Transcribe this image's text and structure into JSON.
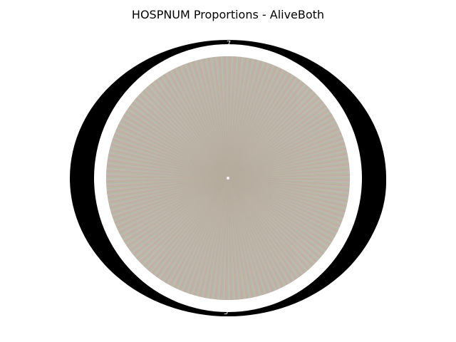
{
  "chart_data": {
    "type": "pie",
    "title": "HOSPNUM Proportions - AliveBoth",
    "slice_count": 1440,
    "values_note": "",
    "visible_label_fragments": [
      "7",
      "3"
    ],
    "colors": {
      "background": "#ffffff",
      "label_ring": "#000000",
      "slice_palette": [
        "#1f77b4",
        "#ff7f0e",
        "#2ca02c",
        "#d62728",
        "#9467bd",
        "#8c564b",
        "#e377c2",
        "#7f7f7f",
        "#bcbd22",
        "#17becf"
      ]
    }
  }
}
